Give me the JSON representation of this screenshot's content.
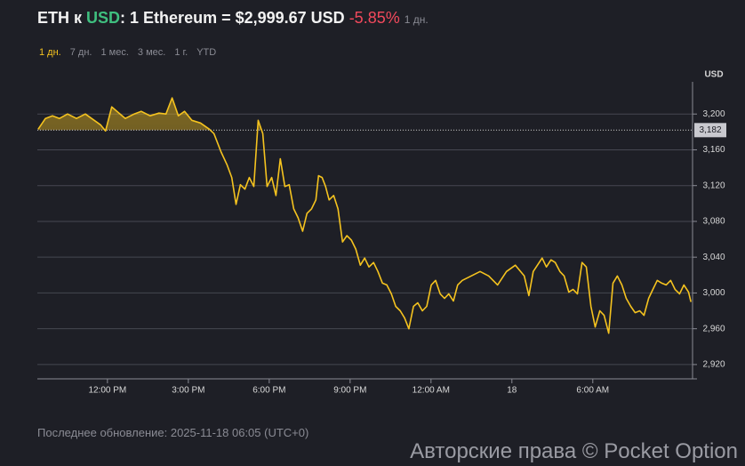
{
  "header": {
    "base": "ETH к",
    "quote": "USD",
    "rate": ": 1 Ethereum = $2,999.67 USD",
    "change": "-5.85%",
    "period": "1 дн."
  },
  "ranges": [
    "1 дн.",
    "7 дн.",
    "1 мес.",
    "3 мес.",
    "1 г.",
    "YTD"
  ],
  "chart_data": {
    "type": "line",
    "y_unit": "USD",
    "color": "#f5c31f",
    "grid": true,
    "reference_line": {
      "value": 3182,
      "label": "3,182"
    },
    "xlim": [
      -2.6,
      21.7
    ],
    "ylim": [
      2904,
      3236
    ],
    "xticks": [
      {
        "value": 0,
        "label": "12:00 PM"
      },
      {
        "value": 3,
        "label": "3:00 PM"
      },
      {
        "value": 6,
        "label": "6:00 PM"
      },
      {
        "value": 9,
        "label": "9:00 PM"
      },
      {
        "value": 12,
        "label": "12:00 AM"
      },
      {
        "value": 15,
        "label": "18"
      },
      {
        "value": 18,
        "label": "6:00 AM"
      }
    ],
    "yticks": [
      {
        "value": 2920,
        "label": "2,920"
      },
      {
        "value": 2960,
        "label": "2,960"
      },
      {
        "value": 3000,
        "label": "3,000"
      },
      {
        "value": 3040,
        "label": "3,040"
      },
      {
        "value": 3080,
        "label": "3,080"
      },
      {
        "value": 3120,
        "label": "3,120"
      },
      {
        "value": 3160,
        "label": "3,160"
      },
      {
        "value": 3200,
        "label": "3,200"
      }
    ],
    "x": [
      -2.57,
      -2.3,
      -2.04,
      -1.78,
      -1.48,
      -1.15,
      -0.82,
      -0.49,
      -0.26,
      -0.07,
      0.16,
      0.39,
      0.66,
      0.99,
      1.25,
      1.58,
      1.91,
      2.17,
      2.4,
      2.63,
      2.86,
      3.13,
      3.45,
      3.78,
      3.95,
      4.21,
      4.44,
      4.61,
      4.77,
      4.93,
      5.1,
      5.26,
      5.43,
      5.59,
      5.76,
      5.92,
      6.09,
      6.25,
      6.41,
      6.58,
      6.74,
      6.91,
      7.07,
      7.24,
      7.4,
      7.57,
      7.73,
      7.83,
      7.96,
      8.09,
      8.22,
      8.39,
      8.55,
      8.72,
      8.88,
      9.05,
      9.21,
      9.38,
      9.54,
      9.7,
      9.87,
      10.03,
      10.2,
      10.36,
      10.53,
      10.69,
      10.86,
      11.02,
      11.18,
      11.35,
      11.51,
      11.68,
      11.84,
      12.01,
      12.17,
      12.34,
      12.5,
      12.66,
      12.83,
      12.99,
      13.16,
      13.49,
      13.82,
      14.14,
      14.47,
      14.8,
      15.13,
      15.46,
      15.63,
      15.79,
      16.12,
      16.28,
      16.45,
      16.61,
      16.78,
      16.94,
      17.11,
      17.27,
      17.43,
      17.6,
      17.76,
      17.93,
      18.09,
      18.26,
      18.42,
      18.59,
      18.75,
      18.91,
      19.08,
      19.24,
      19.41,
      19.57,
      19.74,
      19.9,
      20.07,
      20.23,
      20.39,
      20.56,
      20.72,
      20.89,
      21.05,
      21.22,
      21.38,
      21.55,
      21.64
    ],
    "values": [
      3183,
      3195,
      3198,
      3195,
      3200,
      3195,
      3200,
      3193,
      3188,
      3181,
      3208,
      3202,
      3195,
      3200,
      3203,
      3198,
      3201,
      3200,
      3218,
      3198,
      3203,
      3193,
      3190,
      3183,
      3178,
      3158,
      3143,
      3129,
      3099,
      3121,
      3116,
      3129,
      3119,
      3193,
      3178,
      3119,
      3129,
      3109,
      3150,
      3119,
      3121,
      3094,
      3084,
      3069,
      3089,
      3094,
      3104,
      3131,
      3129,
      3119,
      3104,
      3109,
      3094,
      3057,
      3064,
      3059,
      3049,
      3031,
      3039,
      3029,
      3034,
      3024,
      3011,
      3009,
      2999,
      2985,
      2980,
      2972,
      2960,
      2985,
      2989,
      2980,
      2985,
      3009,
      3014,
      2999,
      2994,
      2999,
      2991,
      3009,
      3014,
      3019,
      3024,
      3019,
      3009,
      3024,
      3031,
      3019,
      2997,
      3024,
      3039,
      3029,
      3037,
      3034,
      3024,
      3019,
      3001,
      3004,
      2999,
      3034,
      3029,
      2985,
      2962,
      2980,
      2975,
      2955,
      3011,
      3019,
      3009,
      2994,
      2985,
      2978,
      2980,
      2975,
      2994,
      3004,
      3014,
      3011,
      3009,
      3014,
      3004,
      2999,
      3009,
      3001,
      2990
    ]
  },
  "footer": "Последнее обновление: 2025-11-18 06:05 (UTC+0)",
  "watermark": "Авторские права © Pocket Option"
}
